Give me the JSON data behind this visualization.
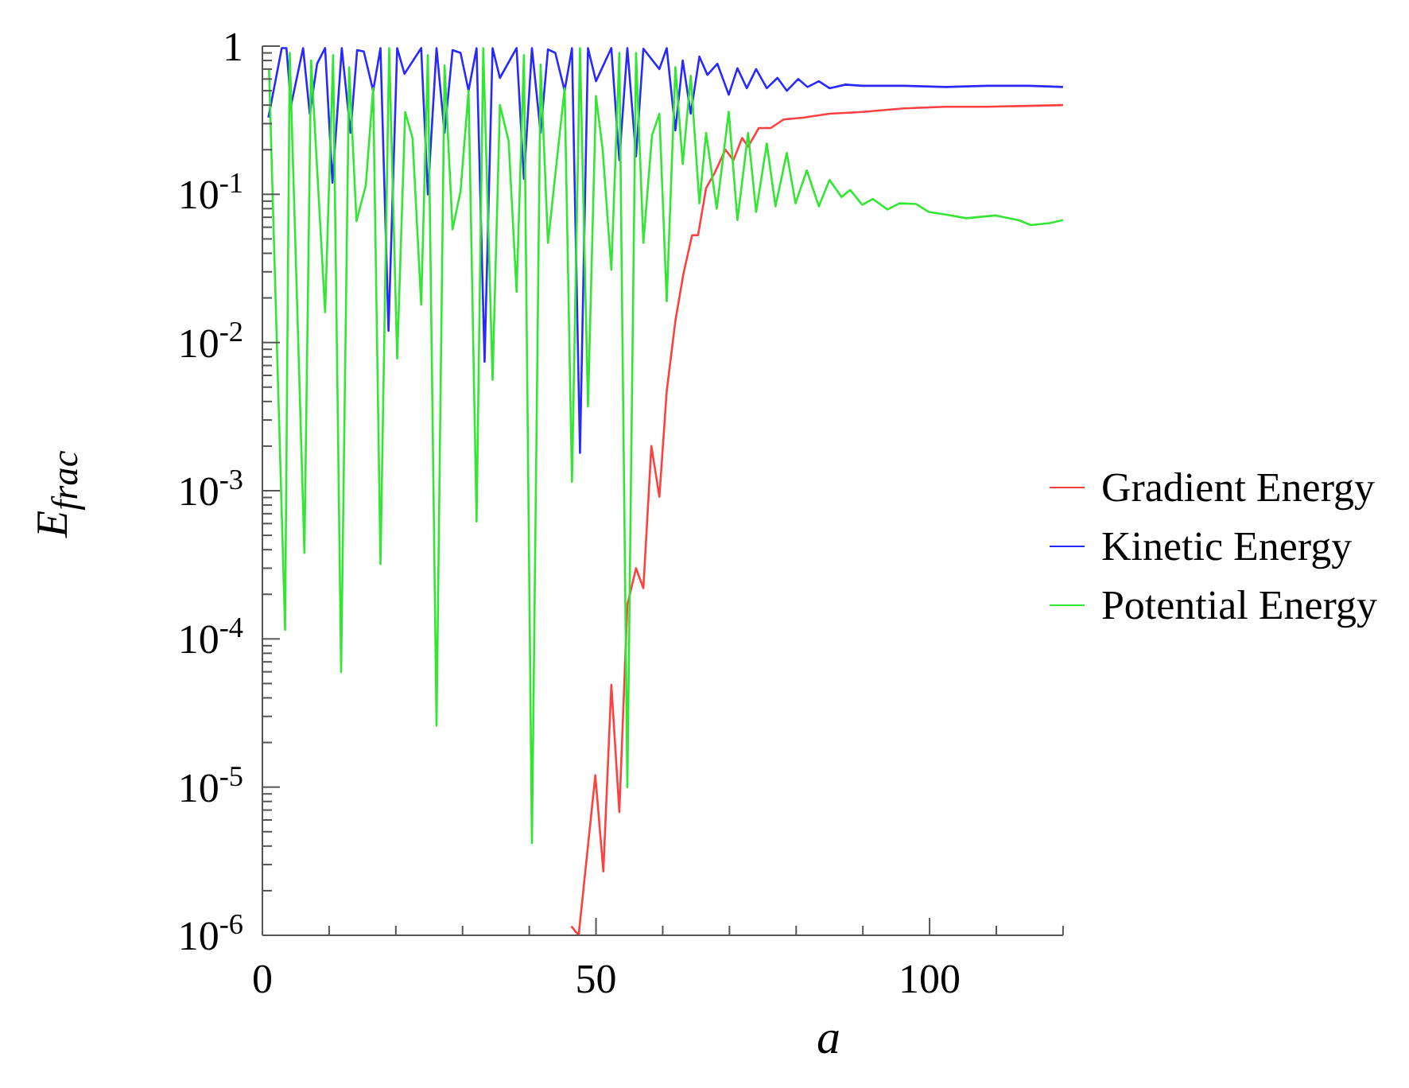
{
  "chart_data": {
    "type": "line",
    "xlabel": "a",
    "ylabel": "E$_{frac}$",
    "log": "y",
    "legend": "right",
    "grid": false,
    "marker": "none",
    "line_style": "solid",
    "xlim": [
      0,
      120
    ],
    "ylim": [
      1e-06,
      1
    ],
    "xticks": [
      0,
      {
        "value": 10,
        "label": null
      },
      {
        "value": 20,
        "label": null
      },
      {
        "value": 30,
        "label": null
      },
      {
        "value": 40,
        "label": null
      },
      50,
      {
        "value": 60,
        "label": null
      },
      {
        "value": 70,
        "label": null
      },
      {
        "value": 80,
        "label": null
      },
      {
        "value": 90,
        "label": null
      },
      100,
      {
        "value": 110,
        "label": null
      },
      {
        "value": 120,
        "label": null
      }
    ],
    "yticks": [
      {
        "value": 1e-06,
        "label": "10$^{-6}$"
      },
      {
        "value": 1e-05,
        "label": "10$^{-5}$"
      },
      {
        "value": 0.0001,
        "label": "10$^{-4}$"
      },
      {
        "value": 0.001,
        "label": "10$^{-3}$"
      },
      {
        "value": 0.01,
        "label": "10$^{-2}$"
      },
      {
        "value": 0.1,
        "label": "10$^{-1}$"
      },
      1,
      {
        "value": 2e-06,
        "label": null
      },
      {
        "value": 3e-06,
        "label": null
      },
      {
        "value": 4e-06,
        "label": null
      },
      {
        "value": 5e-06,
        "label": null
      },
      {
        "value": 6e-06,
        "label": null
      },
      {
        "value": 7e-06,
        "label": null
      },
      {
        "value": 8e-06,
        "label": null
      },
      {
        "value": 9e-06,
        "label": null
      },
      {
        "value": 2e-05,
        "label": null
      },
      {
        "value": 3e-05,
        "label": null
      },
      {
        "value": 4e-05,
        "label": null
      },
      {
        "value": 5e-05,
        "label": null
      },
      {
        "value": 6e-05,
        "label": null
      },
      {
        "value": 7e-05,
        "label": null
      },
      {
        "value": 8e-05,
        "label": null
      },
      {
        "value": 9e-05,
        "label": null
      },
      {
        "value": 0.0002,
        "label": null
      },
      {
        "value": 0.0003,
        "label": null
      },
      {
        "value": 0.0004,
        "label": null
      },
      {
        "value": 0.0005,
        "label": null
      },
      {
        "value": 0.0006,
        "label": null
      },
      {
        "value": 0.0007,
        "label": null
      },
      {
        "value": 0.0008,
        "label": null
      },
      {
        "value": 0.0009,
        "label": null
      },
      {
        "value": 0.002,
        "label": null
      },
      {
        "value": 0.003,
        "label": null
      },
      {
        "value": 0.004,
        "label": null
      },
      {
        "value": 0.005,
        "label": null
      },
      {
        "value": 0.006,
        "label": null
      },
      {
        "value": 0.007,
        "label": null
      },
      {
        "value": 0.008,
        "label": null
      },
      {
        "value": 0.009,
        "label": null
      },
      {
        "value": 0.02,
        "label": null
      },
      {
        "value": 0.03,
        "label": null
      },
      {
        "value": 0.04,
        "label": null
      },
      {
        "value": 0.05,
        "label": null
      },
      {
        "value": 0.06,
        "label": null
      },
      {
        "value": 0.07,
        "label": null
      },
      {
        "value": 0.08,
        "label": null
      },
      {
        "value": 0.09,
        "label": null
      },
      {
        "value": 0.2,
        "label": null
      },
      {
        "value": 0.3,
        "label": null
      },
      {
        "value": 0.4,
        "label": null
      },
      {
        "value": 0.5,
        "label": null
      },
      {
        "value": 0.6,
        "label": null
      },
      {
        "value": 0.7,
        "label": null
      },
      {
        "value": 0.8,
        "label": null
      },
      {
        "value": 0.9,
        "label": null
      }
    ],
    "series": [
      {
        "name": "Gradient Energy",
        "color": "#ff4040",
        "x": [
          46.3,
          47.4,
          49.9,
          51.1,
          52.3,
          53.5,
          54.7,
          56.0,
          57.1,
          58.3,
          59.5,
          60.6,
          61.9,
          63.1,
          64.4,
          65.3,
          66.5,
          67.8,
          69.4,
          70.6,
          71.9,
          72.8,
          74.4,
          76.2,
          78.1,
          81.2,
          85.0,
          89.9,
          96.2,
          102.4,
          108.6,
          120
        ],
        "values": [
          1.15e-06,
          1e-06,
          1.2e-05,
          2.7e-06,
          4.9e-05,
          6.8e-06,
          0.00017,
          0.0003,
          0.00022,
          0.002,
          0.00091,
          0.0047,
          0.014,
          0.029,
          0.053,
          0.053,
          0.11,
          0.14,
          0.2,
          0.17,
          0.24,
          0.21,
          0.28,
          0.28,
          0.32,
          0.33,
          0.35,
          0.36,
          0.38,
          0.39,
          0.39,
          0.4
        ]
      },
      {
        "name": "Kinetic Energy",
        "color": "#2828ff",
        "x": [
          0.9,
          2.9,
          3.6,
          4.3,
          6.1,
          7.1,
          8.2,
          9.4,
          10.5,
          11.9,
          13.2,
          14.2,
          15.2,
          16.6,
          17.7,
          18.9,
          20.2,
          21.3,
          23.8,
          24.8,
          26.1,
          27.3,
          28.5,
          29.7,
          30.9,
          32.1,
          33.3,
          34.5,
          35.6,
          38.1,
          39.2,
          40.4,
          41.7,
          42.8,
          43.9,
          45.3,
          46.4,
          47.6,
          48.8,
          50.0,
          52.3,
          53.5,
          54.7,
          56.0,
          57.1,
          59.5,
          60.6,
          61.9,
          63.0,
          64.2,
          65.5,
          66.7,
          68.2,
          69.9,
          71.2,
          72.6,
          74.0,
          75.6,
          77.2,
          78.6,
          80.3,
          81.7,
          83.4,
          85.0,
          87.4,
          89.9,
          96.2,
          102.4,
          108.6,
          114.9,
          120
        ],
        "values": [
          0.33,
          0.97,
          0.97,
          0.4,
          0.97,
          0.35,
          0.76,
          0.97,
          0.12,
          0.97,
          0.26,
          0.94,
          0.92,
          0.5,
          0.97,
          0.012,
          0.97,
          0.65,
          0.97,
          0.1,
          0.97,
          0.26,
          0.94,
          0.9,
          0.5,
          0.97,
          0.0074,
          0.97,
          0.61,
          0.97,
          0.127,
          0.97,
          0.26,
          0.95,
          0.9,
          0.5,
          0.97,
          0.0018,
          0.97,
          0.58,
          0.97,
          0.17,
          0.97,
          0.18,
          0.96,
          0.7,
          0.97,
          0.27,
          0.8,
          0.35,
          0.85,
          0.64,
          0.76,
          0.47,
          0.71,
          0.52,
          0.7,
          0.52,
          0.61,
          0.5,
          0.6,
          0.53,
          0.58,
          0.52,
          0.55,
          0.54,
          0.54,
          0.53,
          0.54,
          0.54,
          0.53
        ]
      },
      {
        "name": "Potential Energy",
        "color": "#33e633",
        "x": [
          1.0,
          3.4,
          4.1,
          6.3,
          7.3,
          9.4,
          10.6,
          11.8,
          13.0,
          14.1,
          15.5,
          16.6,
          17.7,
          19.0,
          20.2,
          21.4,
          22.5,
          23.8,
          24.8,
          26.1,
          27.3,
          28.5,
          29.7,
          30.9,
          32.1,
          33.1,
          34.5,
          35.6,
          36.9,
          38.1,
          39.2,
          40.4,
          41.7,
          42.8,
          45.3,
          46.4,
          47.6,
          48.8,
          50.0,
          51.0,
          52.3,
          53.5,
          54.7,
          56.0,
          57.1,
          58.4,
          59.5,
          60.6,
          61.9,
          63.0,
          64.2,
          65.5,
          66.5,
          68.1,
          69.9,
          71.2,
          72.8,
          74.0,
          75.6,
          76.9,
          78.6,
          79.9,
          81.6,
          83.4,
          85.0,
          86.8,
          88.1,
          89.9,
          91.5,
          93.7,
          95.5,
          98.0,
          99.9,
          102.4,
          105.5,
          109.9,
          113.3,
          115.2,
          118,
          120
        ],
        "values": [
          0.69,
          0.000115,
          0.9,
          0.00038,
          0.8,
          0.016,
          0.87,
          6e-05,
          0.72,
          0.066,
          0.115,
          0.52,
          0.00032,
          0.97,
          0.0078,
          0.36,
          0.24,
          0.018,
          0.87,
          2.6e-05,
          0.74,
          0.058,
          0.105,
          0.5,
          0.00062,
          0.97,
          0.0056,
          0.4,
          0.23,
          0.022,
          0.87,
          4.2e-06,
          0.75,
          0.047,
          0.52,
          0.00115,
          0.97,
          0.0037,
          0.46,
          0.2,
          0.031,
          0.9,
          1e-05,
          0.9,
          0.047,
          0.25,
          0.35,
          0.019,
          0.72,
          0.16,
          0.63,
          0.087,
          0.26,
          0.08,
          0.36,
          0.067,
          0.26,
          0.076,
          0.22,
          0.083,
          0.19,
          0.087,
          0.145,
          0.083,
          0.125,
          0.096,
          0.107,
          0.085,
          0.093,
          0.079,
          0.087,
          0.086,
          0.076,
          0.073,
          0.069,
          0.072,
          0.067,
          0.062,
          0.064,
          0.067
        ]
      }
    ]
  }
}
